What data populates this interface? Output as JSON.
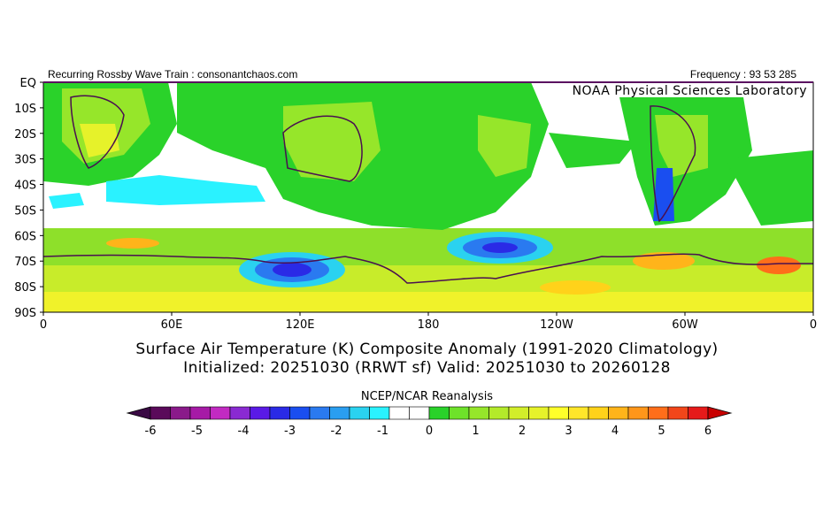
{
  "header": {
    "left_text": "Recurring Rossby Wave Train : consonantchaos.com",
    "right_text": "Frequency : 93 53 285",
    "lab_name": "NOAA Physical Sciences Laboratory"
  },
  "titles": {
    "line1": "Surface Air Temperature (K) Composite Anomaly (1991-2020 Climatology)",
    "line2": "Initialized: 20251030 (RRWT sf) Valid: 20251030 to 20260128"
  },
  "map": {
    "lat_labels": [
      "EQ",
      "10S",
      "20S",
      "30S",
      "40S",
      "50S",
      "60S",
      "70S",
      "80S",
      "90S"
    ],
    "lon_labels": [
      "0",
      "60E",
      "120E",
      "180",
      "120W",
      "60W",
      "0"
    ]
  },
  "colorbar": {
    "label": "NCEP/NCAR Reanalysis",
    "ticks": [
      "-6",
      "-5",
      "-4",
      "-3",
      "-2",
      "-1",
      "0",
      "1",
      "2",
      "3",
      "4",
      "5",
      "6"
    ],
    "low_color": "#3a0a44",
    "high_color": "#c80000",
    "colors": [
      "#5a0a5a",
      "#8a1a8a",
      "#a61aa6",
      "#c22ac2",
      "#8a2ad2",
      "#5a1ae6",
      "#2a2ae6",
      "#1a4ef0",
      "#2a7af0",
      "#2a9ef0",
      "#2ad2f0",
      "#2af2ff",
      "#ffffff",
      "#ffffff",
      "#2ad22a",
      "#6ee22a",
      "#96e62a",
      "#b4ea2a",
      "#d2ee2a",
      "#e6f22a",
      "#ffff2a",
      "#ffe62a",
      "#ffd21a",
      "#ffb41a",
      "#ff961a",
      "#ff6e1a",
      "#f2461a",
      "#e61a1a"
    ]
  }
}
